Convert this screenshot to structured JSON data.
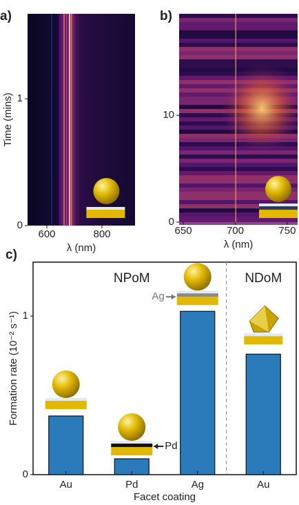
{
  "chart_data": [
    {
      "type": "heatmap",
      "label": "a)",
      "xlabel": "λ (nm)",
      "ylabel": "Time (mins)",
      "xlim": [
        530,
        920
      ],
      "ylim": [
        0,
        1.67
      ],
      "xticks": [
        600,
        800
      ],
      "yticks": [
        0,
        1
      ]
    },
    {
      "type": "heatmap",
      "label": "b)",
      "xlabel": "λ (nm)",
      "xlim": [
        646,
        760
      ],
      "ylim": [
        0,
        19.5
      ],
      "xticks": [
        650,
        700,
        750
      ],
      "yticks": [
        0,
        10
      ]
    },
    {
      "type": "bar",
      "label": "c)",
      "xlabel": "Facet coating",
      "ylabel": "Formation rate (10⁻² s⁻¹)",
      "categories": [
        "Au",
        "Pd",
        "Ag",
        "Au"
      ],
      "values": [
        0.37,
        0.1,
        1.03,
        0.76
      ],
      "color": "#2b7bbb",
      "ylim": [
        0,
        1.34
      ],
      "yticks": [
        0,
        1
      ],
      "annotations": [
        "NPoM",
        "NDoM",
        "Ag",
        "Pd"
      ]
    }
  ]
}
